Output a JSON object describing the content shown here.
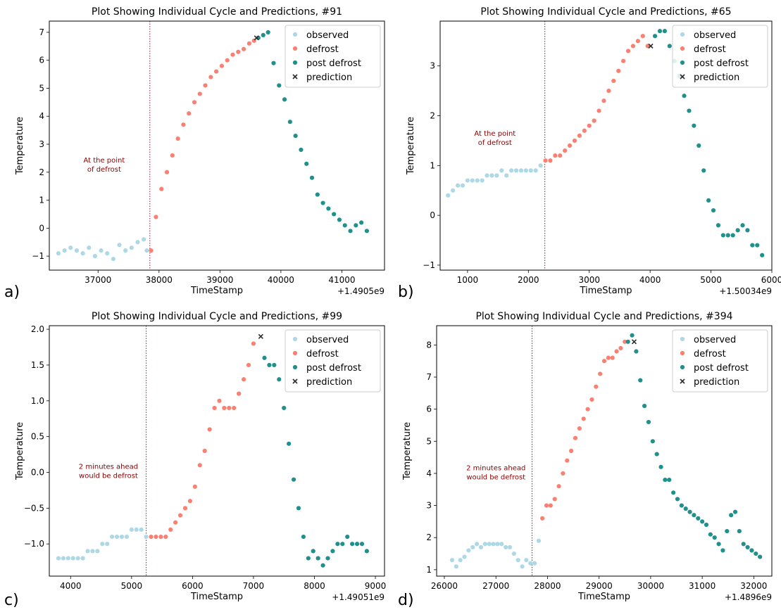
{
  "colors": {
    "observed": "#add8e6",
    "defrost": "#fa8072",
    "post_defrost": "#20908c",
    "prediction": "#2b2b2b",
    "annotation": "#8b0000",
    "vline": "#8b1a4a"
  },
  "chart_data": [
    {
      "panel_label": "a)",
      "type": "scatter",
      "title": "Plot Showing Individual Cycle and Predictions, #91",
      "xlabel": "TimeStamp",
      "ylabel": "Temperature",
      "offset_label": "+1.4905e9",
      "xlim": [
        36200,
        41700
      ],
      "ylim": [
        -1.5,
        7.4
      ],
      "xticks": [
        37000,
        38000,
        39000,
        40000,
        41000
      ],
      "yticks": [
        -1,
        0,
        1,
        2,
        3,
        4,
        5,
        6,
        7
      ],
      "legend_position": "top-right",
      "vline_x": 37850,
      "annotation": {
        "lines": [
          "At the point",
          "of defrost"
        ],
        "x": 37100,
        "y": 2.35
      },
      "series": [
        {
          "name": "observed",
          "role": "observed",
          "marker": "circle",
          "x": [
            36350,
            36450,
            36550,
            36650,
            36750,
            36850,
            36950,
            37050,
            37150,
            37250,
            37350,
            37450,
            37550,
            37650,
            37750,
            37800
          ],
          "y": [
            -0.9,
            -0.8,
            -0.7,
            -0.8,
            -0.9,
            -0.7,
            -1.0,
            -0.8,
            -0.9,
            -1.1,
            -0.6,
            -0.8,
            -0.7,
            -0.5,
            -0.4,
            -0.8
          ]
        },
        {
          "name": "defrost",
          "role": "defrost",
          "marker": "circle",
          "x": [
            37870,
            37950,
            38040,
            38130,
            38220,
            38310,
            38400,
            38490,
            38580,
            38670,
            38760,
            38850,
            38940,
            39030,
            39120,
            39210,
            39300,
            39390,
            39480,
            39560
          ],
          "y": [
            -0.8,
            0.4,
            1.4,
            2.0,
            2.6,
            3.2,
            3.7,
            4.1,
            4.5,
            4.8,
            5.1,
            5.4,
            5.6,
            5.8,
            6.0,
            6.2,
            6.3,
            6.4,
            6.6,
            6.7
          ]
        },
        {
          "name": "post defrost",
          "role": "post_defrost",
          "marker": "circle",
          "x": [
            39630,
            39710,
            39790,
            39880,
            39970,
            40060,
            40150,
            40240,
            40330,
            40420,
            40510,
            40600,
            40690,
            40780,
            40870,
            40960,
            41050,
            41140,
            41230,
            41320,
            41410
          ],
          "y": [
            6.8,
            6.9,
            7.0,
            5.9,
            5.1,
            4.6,
            3.8,
            3.3,
            2.8,
            2.3,
            1.8,
            1.2,
            0.9,
            0.7,
            0.5,
            0.3,
            0.1,
            -0.1,
            0.1,
            0.2,
            -0.1
          ]
        },
        {
          "name": "prediction",
          "role": "prediction",
          "marker": "x",
          "x": [
            39600
          ],
          "y": [
            6.8
          ]
        }
      ]
    },
    {
      "panel_label": "b)",
      "type": "scatter",
      "title": "Plot Showing Individual Cycle and Predictions, #65",
      "xlabel": "TimeStamp",
      "ylabel": "Temperature",
      "offset_label": "+1.50034e9",
      "xlim": [
        550,
        6000
      ],
      "ylim": [
        -1.1,
        3.9
      ],
      "xticks": [
        1000,
        2000,
        3000,
        4000,
        5000,
        6000
      ],
      "yticks": [
        -1,
        0,
        1,
        2,
        3
      ],
      "legend_position": "top-right",
      "vline_x": 2270,
      "annotation": {
        "lines": [
          "At the point",
          "of defrost"
        ],
        "x": 1450,
        "y": 1.6
      },
      "series": [
        {
          "name": "observed",
          "role": "observed",
          "marker": "circle",
          "x": [
            680,
            760,
            840,
            920,
            1000,
            1080,
            1160,
            1240,
            1320,
            1400,
            1480,
            1560,
            1640,
            1720,
            1800,
            1880,
            1960,
            2040,
            2120,
            2200
          ],
          "y": [
            0.4,
            0.5,
            0.6,
            0.6,
            0.7,
            0.7,
            0.7,
            0.7,
            0.8,
            0.8,
            0.8,
            0.9,
            0.8,
            0.9,
            0.9,
            0.9,
            0.9,
            0.9,
            0.9,
            1.0
          ]
        },
        {
          "name": "defrost",
          "role": "defrost",
          "marker": "circle",
          "x": [
            2280,
            2360,
            2440,
            2520,
            2600,
            2680,
            2760,
            2840,
            2920,
            3000,
            3080,
            3160,
            3240,
            3320,
            3400,
            3480,
            3560,
            3640,
            3720,
            3800,
            3880,
            3960
          ],
          "y": [
            1.1,
            1.1,
            1.2,
            1.2,
            1.3,
            1.4,
            1.5,
            1.6,
            1.7,
            1.8,
            1.9,
            2.1,
            2.3,
            2.5,
            2.7,
            2.9,
            3.1,
            3.3,
            3.4,
            3.5,
            3.6,
            3.4
          ]
        },
        {
          "name": "post defrost",
          "role": "post_defrost",
          "marker": "circle",
          "x": [
            4080,
            4160,
            4240,
            4320,
            4400,
            4480,
            4560,
            4640,
            4720,
            4800,
            4880,
            4960,
            5040,
            5120,
            5200,
            5280,
            5360,
            5440,
            5520,
            5600,
            5680,
            5760,
            5840
          ],
          "y": [
            3.6,
            3.7,
            3.7,
            3.4,
            3.1,
            2.8,
            2.4,
            2.1,
            1.8,
            1.4,
            0.9,
            0.3,
            0.1,
            -0.2,
            -0.4,
            -0.4,
            -0.4,
            -0.3,
            -0.2,
            -0.3,
            -0.6,
            -0.6,
            -0.8
          ]
        },
        {
          "name": "prediction",
          "role": "prediction",
          "marker": "x",
          "x": [
            4010
          ],
          "y": [
            3.4
          ]
        }
      ]
    },
    {
      "panel_label": "c)",
      "type": "scatter",
      "title": "Plot Showing Individual Cycle and Predictions, #99",
      "xlabel": "TimeStamp",
      "ylabel": "Temperature",
      "offset_label": "+1.49051e9",
      "xlim": [
        3650,
        9150
      ],
      "ylim": [
        -1.45,
        2.05
      ],
      "xticks": [
        4000,
        5000,
        6000,
        7000,
        8000,
        9000
      ],
      "yticks": [
        -1.0,
        -0.5,
        0.0,
        0.5,
        1.0,
        1.5,
        2.0
      ],
      "legend_position": "top-right",
      "vline_x": 5240,
      "annotation": {
        "lines": [
          "2 minutes ahead",
          "would be defrost"
        ],
        "x": 4620,
        "y": 0.05
      },
      "series": [
        {
          "name": "observed",
          "role": "observed",
          "marker": "circle",
          "x": [
            3800,
            3880,
            3960,
            4040,
            4120,
            4200,
            4280,
            4360,
            4440,
            4520,
            4600,
            4680,
            4760,
            4840,
            4920,
            5000,
            5080,
            5160,
            5240
          ],
          "y": [
            -1.2,
            -1.2,
            -1.2,
            -1.2,
            -1.2,
            -1.2,
            -1.1,
            -1.1,
            -1.1,
            -1.0,
            -1.0,
            -0.9,
            -0.9,
            -0.9,
            -0.9,
            -0.8,
            -0.8,
            -0.8,
            -0.9
          ]
        },
        {
          "name": "defrost",
          "role": "defrost",
          "marker": "circle",
          "x": [
            5320,
            5400,
            5480,
            5560,
            5640,
            5720,
            5800,
            5880,
            5960,
            6040,
            6120,
            6200,
            6280,
            6360,
            6440,
            6520,
            6600,
            6680,
            6760,
            6840,
            6920,
            7000
          ],
          "y": [
            -0.9,
            -0.9,
            -0.9,
            -0.9,
            -0.8,
            -0.7,
            -0.6,
            -0.5,
            -0.4,
            -0.2,
            0.1,
            0.3,
            0.6,
            0.9,
            1.0,
            0.9,
            0.9,
            0.9,
            1.1,
            1.3,
            1.5,
            1.8
          ]
        },
        {
          "name": "post defrost",
          "role": "post_defrost",
          "marker": "circle",
          "x": [
            7180,
            7260,
            7340,
            7420,
            7500,
            7580,
            7660,
            7740,
            7820,
            7900,
            7980,
            8060,
            8140,
            8220,
            8300,
            8380,
            8460,
            8540,
            8620,
            8700,
            8780,
            8860
          ],
          "y": [
            1.6,
            1.5,
            1.5,
            1.3,
            0.9,
            0.4,
            -0.1,
            -0.5,
            -0.9,
            -1.2,
            -1.1,
            -1.2,
            -1.3,
            -1.2,
            -1.1,
            -1.0,
            -1.0,
            -0.9,
            -1.0,
            -1.0,
            -1.0,
            -1.1
          ]
        },
        {
          "name": "prediction",
          "role": "prediction",
          "marker": "x",
          "x": [
            7120
          ],
          "y": [
            1.9
          ]
        }
      ]
    },
    {
      "panel_label": "d)",
      "type": "scatter",
      "title": "Plot Showing Individual Cycle and Predictions, #394",
      "xlabel": "TimeStamp",
      "ylabel": "Temperature",
      "offset_label": "+1.4896e9",
      "xlim": [
        25850,
        32350
      ],
      "ylim": [
        0.8,
        8.6
      ],
      "xticks": [
        26000,
        27000,
        28000,
        29000,
        30000,
        31000,
        32000
      ],
      "yticks": [
        1,
        2,
        3,
        4,
        5,
        6,
        7,
        8
      ],
      "legend_position": "top-right",
      "vline_x": 27700,
      "annotation": {
        "lines": [
          "2 minutes ahead",
          "would be defrost"
        ],
        "x": 27000,
        "y": 4.1
      },
      "series": [
        {
          "name": "observed",
          "role": "observed",
          "marker": "circle",
          "x": [
            26150,
            26230,
            26310,
            26390,
            26470,
            26550,
            26630,
            26710,
            26790,
            26870,
            26950,
            27030,
            27110,
            27190,
            27270,
            27350,
            27430,
            27510,
            27590,
            27670,
            27750,
            27830
          ],
          "y": [
            1.3,
            1.1,
            1.3,
            1.4,
            1.6,
            1.7,
            1.8,
            1.7,
            1.8,
            1.8,
            1.8,
            1.8,
            1.8,
            1.7,
            1.7,
            1.5,
            1.3,
            1.1,
            1.3,
            1.2,
            1.2,
            1.9
          ]
        },
        {
          "name": "defrost",
          "role": "defrost",
          "marker": "circle",
          "x": [
            27900,
            27980,
            28060,
            28140,
            28220,
            28300,
            28380,
            28460,
            28540,
            28620,
            28700,
            28780,
            28860,
            28940,
            29020,
            29100,
            29180,
            29260,
            29340,
            29420,
            29500
          ],
          "y": [
            2.6,
            3.0,
            3.0,
            3.2,
            3.6,
            4.0,
            4.4,
            4.7,
            5.1,
            5.4,
            5.7,
            6.0,
            6.3,
            6.7,
            7.1,
            7.5,
            7.6,
            7.6,
            7.8,
            7.9,
            8.1
          ]
        },
        {
          "name": "post defrost",
          "role": "post_defrost",
          "marker": "circle",
          "x": [
            29560,
            29640,
            29720,
            29800,
            29880,
            29960,
            30040,
            30120,
            30200,
            30280,
            30360,
            30440,
            30520,
            30600,
            30680,
            30760,
            30840,
            30920,
            31000,
            31080,
            31160,
            31240,
            31320,
            31400,
            31480,
            31560,
            31640,
            31720,
            31800,
            31880,
            31960,
            32040,
            32120
          ],
          "y": [
            8.1,
            8.3,
            7.8,
            6.9,
            6.1,
            5.6,
            5.0,
            4.6,
            4.2,
            3.8,
            3.8,
            3.4,
            3.2,
            3.0,
            2.9,
            2.8,
            2.7,
            2.6,
            2.5,
            2.4,
            2.1,
            2.0,
            1.8,
            1.6,
            2.2,
            2.7,
            2.8,
            2.2,
            1.8,
            1.7,
            1.6,
            1.5,
            1.4
          ]
        },
        {
          "name": "prediction",
          "role": "prediction",
          "marker": "x",
          "x": [
            29680
          ],
          "y": [
            8.1
          ]
        }
      ]
    }
  ]
}
